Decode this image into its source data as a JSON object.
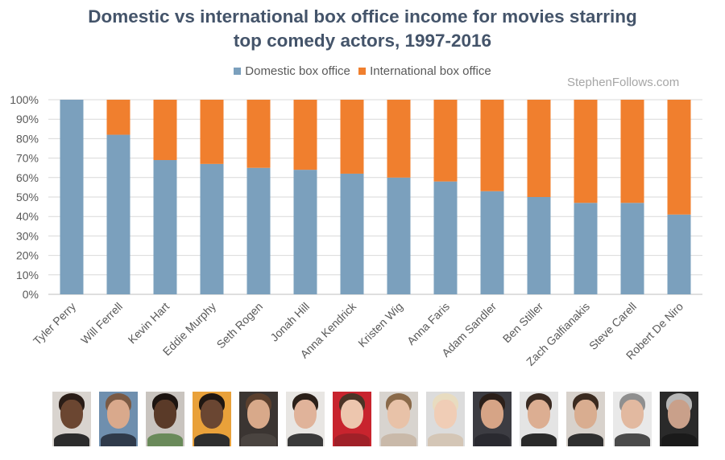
{
  "chart_data": {
    "type": "bar",
    "stacked": true,
    "title": "Domestic vs international box office income for movies starring top comedy actors, 1997-2016",
    "title_lines": [
      "Domestic vs international box office income for movies starring",
      "top comedy actors, 1997-2016"
    ],
    "categories": [
      "Tyler Perry",
      "Will Ferrell",
      "Kevin Hart",
      "Eddie Murphy",
      "Seth Rogen",
      "Jonah Hill",
      "Anna Kendrick",
      "Kristen Wig",
      "Anna Faris",
      "Adam Sandler",
      "Ben Stiller",
      "Zach Galfianakis",
      "Steve Carell",
      "Robert De Niro"
    ],
    "series": [
      {
        "name": "Domestic box office",
        "color": "#7ba0bd",
        "values": [
          100,
          82,
          69,
          67,
          65,
          64,
          62,
          60,
          58,
          53,
          50,
          47,
          47,
          41
        ]
      },
      {
        "name": "International box office",
        "color": "#f07f2e",
        "values": [
          0,
          18,
          31,
          33,
          35,
          36,
          38,
          40,
          42,
          47,
          50,
          53,
          53,
          59
        ]
      }
    ],
    "ylim": [
      0,
      100
    ],
    "yticks": [
      "0%",
      "10%",
      "20%",
      "30%",
      "40%",
      "50%",
      "60%",
      "70%",
      "80%",
      "90%",
      "100%"
    ],
    "xlabel": "",
    "ylabel": "",
    "grid": true,
    "legend": "top"
  },
  "watermark": "StephenFollows.com",
  "photos": [
    {
      "actor": "Tyler Perry",
      "bg": "#d9d4cf",
      "skin": "#6b4631",
      "hair": "#2a1d17",
      "shirt": "#2c2c2c"
    },
    {
      "actor": "Will Ferrell",
      "bg": "#6f8fae",
      "skin": "#d9a98c",
      "hair": "#7a5a44",
      "shirt": "#2f3a4a"
    },
    {
      "actor": "Kevin Hart",
      "bg": "#c9c4bf",
      "skin": "#5a3a28",
      "hair": "#1c1410",
      "shirt": "#6a8a5a"
    },
    {
      "actor": "Eddie Murphy",
      "bg": "#e9a13a",
      "skin": "#6a4632",
      "hair": "#1f1712",
      "shirt": "#2e2e2e"
    },
    {
      "actor": "Seth Rogen",
      "bg": "#3b3532",
      "skin": "#d8a98a",
      "hair": "#5a3f2d",
      "shirt": "#4a4440"
    },
    {
      "actor": "Jonah Hill",
      "bg": "#e8e6e3",
      "skin": "#e0b39a",
      "hair": "#2b2019",
      "shirt": "#3a3a3a"
    },
    {
      "actor": "Anna Kendrick",
      "bg": "#c8242e",
      "skin": "#edc6ae",
      "hair": "#4a3426",
      "shirt": "#a02028"
    },
    {
      "actor": "Kristen Wig",
      "bg": "#d8d4cf",
      "skin": "#e8c2a8",
      "hair": "#8a6a4a",
      "shirt": "#c9b9a9"
    },
    {
      "actor": "Anna Faris",
      "bg": "#dcdcdc",
      "skin": "#f0cdb6",
      "hair": "#e8dcc0",
      "shirt": "#d4c6b6"
    },
    {
      "actor": "Adam Sandler",
      "bg": "#3c3c42",
      "skin": "#d6a486",
      "hair": "#2b1f19",
      "shirt": "#2a2a30"
    },
    {
      "actor": "Ben Stiller",
      "bg": "#e4e4e4",
      "skin": "#dcae92",
      "hair": "#3a2b22",
      "shirt": "#2a2a2a"
    },
    {
      "actor": "Zach Galfianakis",
      "bg": "#d8d2cc",
      "skin": "#d9ad90",
      "hair": "#3b2a1f",
      "shirt": "#2f2f2f"
    },
    {
      "actor": "Steve Carell",
      "bg": "#e9e9e9",
      "skin": "#e2b9a0",
      "hair": "#8f8f8f",
      "shirt": "#4a4a4a"
    },
    {
      "actor": "Robert De Niro",
      "bg": "#2a2a2a",
      "skin": "#c9a08a",
      "hair": "#b8b8b8",
      "shirt": "#1a1a1a"
    }
  ]
}
